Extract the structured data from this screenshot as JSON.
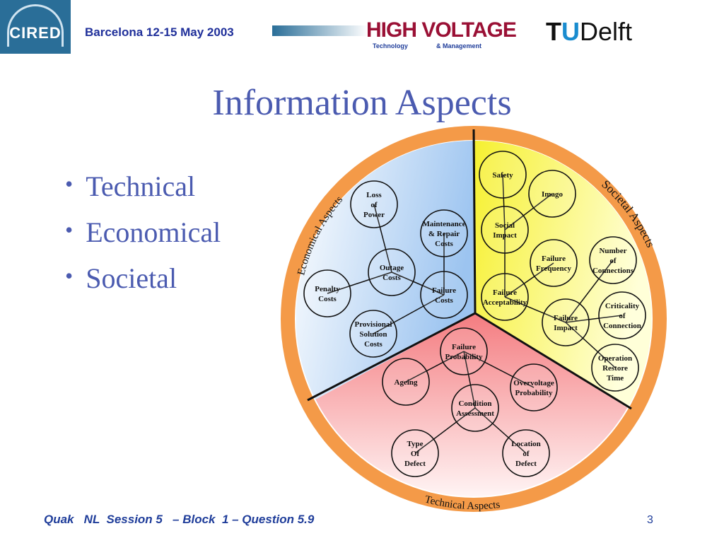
{
  "header": {
    "logo_left": "CIRED",
    "venue": "Barcelona  12-15 May 2003",
    "logo_hv": "HIGH VOLTAGE",
    "logo_hv_sub1": "Technology",
    "logo_hv_sub2": "& Management",
    "logo_tud": "TUDelft"
  },
  "title": "Information Aspects",
  "bullets": [
    "Technical",
    "Economical",
    "Societal"
  ],
  "diagram": {
    "sectors": [
      {
        "id": "eco",
        "label": "Economical Aspects",
        "color": "#9cc4f0"
      },
      {
        "id": "soc",
        "label": "Societal Aspects",
        "color": "#f6f25a"
      },
      {
        "id": "tech",
        "label": "Technical Aspects",
        "color": "#f48c8c"
      }
    ],
    "ring_color": "#f49a48",
    "nodes": {
      "safety": [
        "Safety"
      ],
      "imago": [
        "Imago"
      ],
      "social": [
        "Social",
        "Impact"
      ],
      "ffreq": [
        "Failure",
        "Frequency"
      ],
      "facc": [
        "Failure",
        "Acceptability"
      ],
      "nconn": [
        "Number",
        "of",
        "Connections"
      ],
      "crit": [
        "Criticality",
        "of",
        "Connection"
      ],
      "fimp": [
        "Failure",
        "Impact"
      ],
      "ort": [
        "Operation",
        "Restore",
        "Time"
      ],
      "loss": [
        "Loss",
        "of",
        "Power"
      ],
      "maint": [
        "Maintenance",
        "& Repair",
        "Costs"
      ],
      "outage": [
        "Outage",
        "Costs"
      ],
      "penalty": [
        "Penalty",
        "Costs"
      ],
      "fcost": [
        "Failure",
        "Costs"
      ],
      "prov": [
        "Provisional",
        "Solution",
        "Costs"
      ],
      "fprob": [
        "Failure",
        "Probability"
      ],
      "ageing": [
        "Ageing"
      ],
      "overv": [
        "Overvoltage",
        "Probability"
      ],
      "cond": [
        "Condition",
        "Assessment"
      ],
      "type": [
        "Type",
        "Of",
        "Defect"
      ],
      "loc": [
        "Location",
        "of",
        "Defect"
      ]
    },
    "edges": [
      [
        "safety",
        "social"
      ],
      [
        "imago",
        "social"
      ],
      [
        "social",
        "facc"
      ],
      [
        "ffreq",
        "facc"
      ],
      [
        "facc",
        "fimp"
      ],
      [
        "fimp",
        "nconn"
      ],
      [
        "fimp",
        "crit"
      ],
      [
        "fimp",
        "ort"
      ],
      [
        "loss",
        "outage"
      ],
      [
        "outage",
        "penalty"
      ],
      [
        "outage",
        "fcost"
      ],
      [
        "maint",
        "fcost"
      ],
      [
        "fcost",
        "prov"
      ],
      [
        "fprob",
        "ageing"
      ],
      [
        "fprob",
        "overv"
      ],
      [
        "fprob",
        "cond"
      ],
      [
        "cond",
        "type"
      ],
      [
        "cond",
        "loc"
      ]
    ]
  },
  "footer": "Quak   NL  Session 5   – Block  1 – Question 5.9",
  "page_number": "3"
}
